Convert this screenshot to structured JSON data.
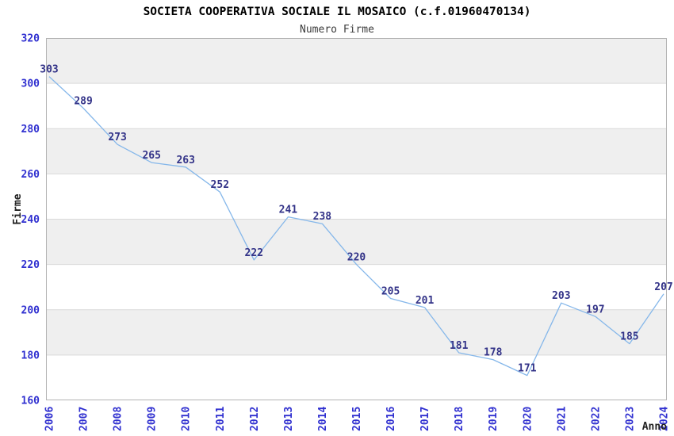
{
  "chart_data": {
    "type": "line",
    "title": "SOCIETA COOPERATIVA SOCIALE IL MOSAICO (c.f.01960470134)",
    "subtitle": "Numero Firme",
    "xlabel": "Anno",
    "ylabel": "Firme",
    "categories": [
      "2006",
      "2007",
      "2008",
      "2009",
      "2010",
      "2011",
      "2012",
      "2013",
      "2014",
      "2015",
      "2016",
      "2017",
      "2018",
      "2019",
      "2020",
      "2021",
      "2022",
      "2023",
      "2024"
    ],
    "series": [
      {
        "name": "Numero Firme",
        "values": [
          303,
          289,
          273,
          265,
          263,
          252,
          222,
          241,
          238,
          220,
          205,
          201,
          181,
          178,
          171,
          203,
          197,
          185,
          207
        ]
      }
    ],
    "ylim": [
      160,
      320
    ],
    "ytick_step": 20,
    "yticks": [
      320,
      300,
      280,
      260,
      240,
      220,
      200,
      180,
      160
    ],
    "grid": "horizontal-alternating-bands",
    "legend_position": "none",
    "data_labels_visible": true,
    "colors": {
      "line": "#85b7ea",
      "data_label": "#333388",
      "tick_label": "#3030d0",
      "title": "#000000",
      "subtitle": "#3c3c3c",
      "axis_title": "#222222",
      "band_fill": "#efefef",
      "gridline": "#d9d9d9",
      "plot_border": "#b3b3b3",
      "background": "#ffffff"
    }
  }
}
